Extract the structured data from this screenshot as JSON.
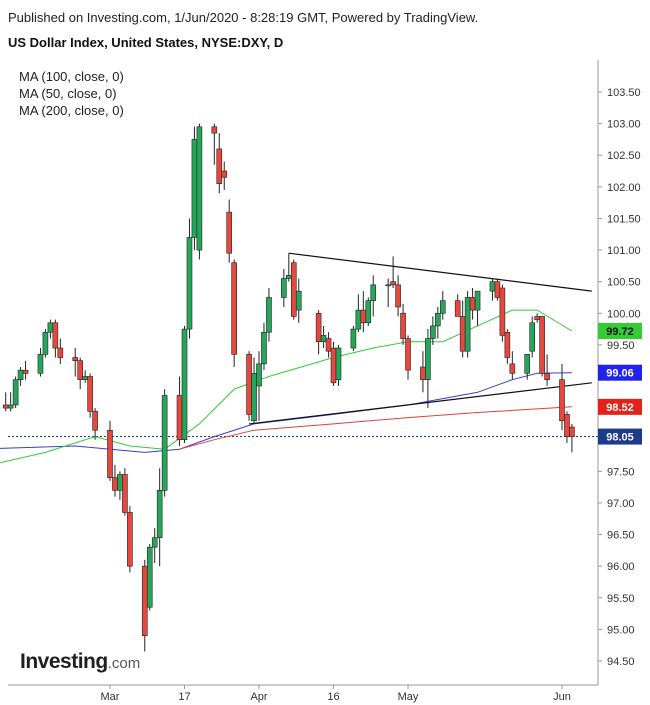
{
  "header": {
    "published": "Published on Investing.com, 1/Jun/2020 - 8:28:19 GMT, Powered by TradingView.",
    "title": "US Dollar Index, United States, NYSE:DXY, D"
  },
  "legend": [
    {
      "label": "MA (100, close, 0)",
      "color": "#3b3bd6"
    },
    {
      "label": "MA (50, close, 0)",
      "color": "#33cc33"
    },
    {
      "label": "MA (200, close, 0)",
      "color": "#e0413a"
    }
  ],
  "logo": {
    "brand": "Investing",
    "suffix": ".com"
  },
  "chart_data": {
    "type": "candlestick",
    "ylim": [
      94.3,
      103.85
    ],
    "y_ticks": [
      "103.50",
      "103.00",
      "102.50",
      "102.00",
      "101.50",
      "101.00",
      "100.50",
      "100.00",
      "99.50",
      "99.00",
      "98.50",
      "98.00",
      "97.50",
      "97.00",
      "96.50",
      "96.00",
      "95.50",
      "95.00",
      "94.50"
    ],
    "x_ticks": [
      {
        "label": "Mar",
        "date": "2020-03-02"
      },
      {
        "label": "17",
        "date": "2020-03-17"
      },
      {
        "label": "Apr",
        "date": "2020-04-01"
      },
      {
        "label": "16",
        "date": "2020-04-16"
      },
      {
        "label": "May",
        "date": "2020-05-01"
      },
      {
        "label": "Jun",
        "date": "2020-06-01"
      }
    ],
    "candles": [
      {
        "d": "2020-02-04",
        "o": 97.85,
        "h": 98.0,
        "l": 97.72,
        "c": 97.98
      },
      {
        "d": "2020-02-05",
        "o": 97.98,
        "h": 98.35,
        "l": 97.95,
        "c": 98.3
      },
      {
        "d": "2020-02-06",
        "o": 98.3,
        "h": 98.45,
        "l": 98.2,
        "c": 98.42
      },
      {
        "d": "2020-02-07",
        "o": 98.42,
        "h": 98.6,
        "l": 98.35,
        "c": 98.55
      },
      {
        "d": "2020-02-10",
        "o": 98.55,
        "h": 98.75,
        "l": 98.45,
        "c": 98.5
      },
      {
        "d": "2020-02-11",
        "o": 98.5,
        "h": 98.75,
        "l": 98.45,
        "c": 98.55
      },
      {
        "d": "2020-02-12",
        "o": 98.55,
        "h": 99.0,
        "l": 98.5,
        "c": 98.95
      },
      {
        "d": "2020-02-13",
        "o": 98.95,
        "h": 99.15,
        "l": 98.85,
        "c": 99.1
      },
      {
        "d": "2020-02-14",
        "o": 99.1,
        "h": 99.25,
        "l": 98.95,
        "c": 99.05
      },
      {
        "d": "2020-02-17",
        "o": 99.05,
        "h": 99.45,
        "l": 99.0,
        "c": 99.35
      },
      {
        "d": "2020-02-18",
        "o": 99.35,
        "h": 99.75,
        "l": 99.3,
        "c": 99.7
      },
      {
        "d": "2020-02-19",
        "o": 99.7,
        "h": 99.9,
        "l": 99.6,
        "c": 99.85
      },
      {
        "d": "2020-02-20",
        "o": 99.85,
        "h": 99.9,
        "l": 99.3,
        "c": 99.45
      },
      {
        "d": "2020-02-21",
        "o": 99.45,
        "h": 99.6,
        "l": 99.2,
        "c": 99.3
      },
      {
        "d": "2020-02-24",
        "o": 99.3,
        "h": 99.45,
        "l": 99.0,
        "c": 99.25
      },
      {
        "d": "2020-02-25",
        "o": 99.25,
        "h": 99.3,
        "l": 98.8,
        "c": 98.95
      },
      {
        "d": "2020-02-26",
        "o": 98.95,
        "h": 99.1,
        "l": 98.9,
        "c": 99.0
      },
      {
        "d": "2020-02-27",
        "o": 99.0,
        "h": 99.05,
        "l": 98.35,
        "c": 98.45
      },
      {
        "d": "2020-02-28",
        "o": 98.45,
        "h": 98.5,
        "l": 98.0,
        "c": 98.15
      },
      {
        "d": "2020-03-02",
        "o": 98.15,
        "h": 98.3,
        "l": 97.35,
        "c": 97.4
      },
      {
        "d": "2020-03-03",
        "o": 97.4,
        "h": 97.6,
        "l": 97.1,
        "c": 97.2
      },
      {
        "d": "2020-03-04",
        "o": 97.2,
        "h": 97.5,
        "l": 97.05,
        "c": 97.45
      },
      {
        "d": "2020-03-05",
        "o": 97.45,
        "h": 97.55,
        "l": 96.8,
        "c": 96.85
      },
      {
        "d": "2020-03-06",
        "o": 96.85,
        "h": 96.95,
        "l": 95.9,
        "c": 96.0
      },
      {
        "d": "2020-03-09",
        "o": 96.0,
        "h": 96.1,
        "l": 94.65,
        "c": 94.9
      },
      {
        "d": "2020-03-10",
        "o": 95.35,
        "h": 96.35,
        "l": 95.3,
        "c": 96.3
      },
      {
        "d": "2020-03-11",
        "o": 96.3,
        "h": 96.6,
        "l": 96.05,
        "c": 96.45
      },
      {
        "d": "2020-03-12",
        "o": 96.45,
        "h": 97.55,
        "l": 96.0,
        "c": 97.2
      },
      {
        "d": "2020-03-13",
        "o": 97.2,
        "h": 98.8,
        "l": 97.1,
        "c": 98.7
      },
      {
        "d": "2020-03-16",
        "o": 98.7,
        "h": 99.0,
        "l": 97.9,
        "c": 98.0
      },
      {
        "d": "2020-03-17",
        "o": 98.0,
        "h": 99.8,
        "l": 97.95,
        "c": 99.75
      },
      {
        "d": "2020-03-18",
        "o": 99.75,
        "h": 101.5,
        "l": 99.6,
        "c": 101.2
      },
      {
        "d": "2020-03-19",
        "o": 101.2,
        "h": 102.95,
        "l": 101.0,
        "c": 102.75
      },
      {
        "d": "2020-03-20",
        "o": 101.0,
        "h": 103.0,
        "l": 100.85,
        "c": 102.95
      },
      {
        "d": "2020-03-23",
        "o": 102.95,
        "h": 103.0,
        "l": 102.35,
        "c": 102.85
      },
      {
        "d": "2020-03-24",
        "o": 102.6,
        "h": 102.85,
        "l": 101.9,
        "c": 102.05
      },
      {
        "d": "2020-03-25",
        "o": 102.25,
        "h": 102.4,
        "l": 101.95,
        "c": 102.15
      },
      {
        "d": "2020-03-26",
        "o": 101.6,
        "h": 101.8,
        "l": 100.8,
        "c": 100.95
      },
      {
        "d": "2020-03-27",
        "o": 100.8,
        "h": 100.85,
        "l": 99.15,
        "c": 99.35
      },
      {
        "d": "2020-03-30",
        "o": 99.35,
        "h": 99.4,
        "l": 98.3,
        "c": 98.4
      },
      {
        "d": "2020-03-31",
        "o": 98.3,
        "h": 99.3,
        "l": 98.25,
        "c": 99.05
      },
      {
        "d": "2020-04-01",
        "o": 98.85,
        "h": 99.4,
        "l": 98.3,
        "c": 99.2
      },
      {
        "d": "2020-04-02",
        "o": 99.2,
        "h": 99.85,
        "l": 99.1,
        "c": 99.7
      },
      {
        "d": "2020-04-03",
        "o": 99.7,
        "h": 100.4,
        "l": 99.55,
        "c": 100.25
      },
      {
        "d": "2020-04-06",
        "o": 100.25,
        "h": 100.7,
        "l": 100.1,
        "c": 100.55
      },
      {
        "d": "2020-04-07",
        "o": 100.55,
        "h": 100.95,
        "l": 100.5,
        "c": 100.6
      },
      {
        "d": "2020-04-08",
        "o": 100.8,
        "h": 100.85,
        "l": 99.9,
        "c": 99.95
      },
      {
        "d": "2020-04-09",
        "o": 100.05,
        "h": 100.55,
        "l": 99.85,
        "c": 100.35
      },
      {
        "d": "2020-04-13",
        "o": 100.0,
        "h": 100.05,
        "l": 99.35,
        "c": 99.55
      },
      {
        "d": "2020-04-14",
        "o": 99.55,
        "h": 99.8,
        "l": 99.45,
        "c": 99.65
      },
      {
        "d": "2020-04-15",
        "o": 99.6,
        "h": 99.7,
        "l": 99.3,
        "c": 99.4
      },
      {
        "d": "2020-04-16",
        "o": 99.45,
        "h": 99.55,
        "l": 98.85,
        "c": 98.9
      },
      {
        "d": "2020-04-17",
        "o": 98.95,
        "h": 99.5,
        "l": 98.85,
        "c": 99.45
      },
      {
        "d": "2020-04-20",
        "o": 99.45,
        "h": 99.8,
        "l": 99.4,
        "c": 99.75
      },
      {
        "d": "2020-04-21",
        "o": 99.75,
        "h": 100.3,
        "l": 99.7,
        "c": 100.05
      },
      {
        "d": "2020-04-22",
        "o": 100.05,
        "h": 100.35,
        "l": 99.7,
        "c": 99.85
      },
      {
        "d": "2020-04-23",
        "o": 99.85,
        "h": 100.25,
        "l": 99.8,
        "c": 100.2
      },
      {
        "d": "2020-04-24",
        "o": 100.2,
        "h": 100.6,
        "l": 99.95,
        "c": 100.45
      },
      {
        "d": "2020-04-27",
        "o": 100.45,
        "h": 100.55,
        "l": 100.1,
        "c": 100.45
      },
      {
        "d": "2020-04-28",
        "o": 100.5,
        "h": 100.9,
        "l": 100.4,
        "c": 100.45
      },
      {
        "d": "2020-04-29",
        "o": 100.45,
        "h": 100.6,
        "l": 99.95,
        "c": 100.1
      },
      {
        "d": "2020-04-30",
        "o": 100.0,
        "h": 100.15,
        "l": 99.5,
        "c": 99.6
      },
      {
        "d": "2020-05-01",
        "o": 99.6,
        "h": 99.65,
        "l": 98.95,
        "c": 99.1
      },
      {
        "d": "2020-05-04",
        "o": 99.15,
        "h": 99.4,
        "l": 98.75,
        "c": 98.95
      },
      {
        "d": "2020-05-05",
        "o": 98.95,
        "h": 99.75,
        "l": 98.5,
        "c": 99.6
      },
      {
        "d": "2020-05-06",
        "o": 99.6,
        "h": 99.95,
        "l": 99.5,
        "c": 99.8
      },
      {
        "d": "2020-05-07",
        "o": 99.8,
        "h": 100.1,
        "l": 99.6,
        "c": 100.0
      },
      {
        "d": "2020-05-08",
        "o": 100.0,
        "h": 100.35,
        "l": 99.9,
        "c": 100.2
      },
      {
        "d": "2020-05-11",
        "o": 100.2,
        "h": 100.3,
        "l": 99.95,
        "c": 99.95
      },
      {
        "d": "2020-05-12",
        "o": 99.95,
        "h": 100.2,
        "l": 99.3,
        "c": 99.4
      },
      {
        "d": "2020-05-13",
        "o": 99.4,
        "h": 100.35,
        "l": 99.3,
        "c": 100.25
      },
      {
        "d": "2020-05-14",
        "o": 100.25,
        "h": 100.4,
        "l": 99.9,
        "c": 100.05
      },
      {
        "d": "2020-05-15",
        "o": 100.05,
        "h": 100.3,
        "l": 99.8,
        "c": 100.35
      },
      {
        "d": "2020-05-18",
        "o": 100.35,
        "h": 100.55,
        "l": 100.2,
        "c": 100.5
      },
      {
        "d": "2020-05-19",
        "o": 100.5,
        "h": 100.55,
        "l": 100.2,
        "c": 100.25
      },
      {
        "d": "2020-05-20",
        "o": 100.4,
        "h": 100.45,
        "l": 99.55,
        "c": 99.65
      },
      {
        "d": "2020-05-21",
        "o": 99.7,
        "h": 99.75,
        "l": 99.2,
        "c": 99.3
      },
      {
        "d": "2020-05-22",
        "o": 99.2,
        "h": 99.4,
        "l": 98.95,
        "c": 99.05
      },
      {
        "d": "2020-05-25",
        "o": 99.05,
        "h": 99.35,
        "l": 98.95,
        "c": 99.35
      },
      {
        "d": "2020-05-26",
        "o": 99.4,
        "h": 99.95,
        "l": 99.3,
        "c": 99.85
      },
      {
        "d": "2020-05-27",
        "o": 99.95,
        "h": 100.0,
        "l": 99.85,
        "c": 99.9
      },
      {
        "d": "2020-05-28",
        "o": 99.95,
        "h": 99.95,
        "l": 99.0,
        "c": 99.05
      },
      {
        "d": "2020-05-29",
        "o": 99.05,
        "h": 99.35,
        "l": 98.85,
        "c": 98.95
      },
      {
        "d": "2020-06-01",
        "o": 98.95,
        "h": 99.2,
        "l": 98.15,
        "c": 98.3
      },
      {
        "d": "2020-06-02",
        "o": 98.4,
        "h": 98.45,
        "l": 97.95,
        "c": 98.05
      },
      {
        "d": "2020-06-03",
        "o": 98.2,
        "h": 98.25,
        "l": 97.8,
        "c": 98.05
      }
    ],
    "ma_lines": [
      {
        "name": "MA (100, close, 0)",
        "color": "#3b3bd6",
        "last_value": "99.06",
        "points": [
          [
            "2020-02-04",
            97.85
          ],
          [
            "2020-02-24",
            97.9
          ],
          [
            "2020-03-09",
            97.8
          ],
          [
            "2020-03-16",
            97.85
          ],
          [
            "2020-03-23",
            98.05
          ],
          [
            "2020-03-31",
            98.25
          ],
          [
            "2020-04-16",
            98.4
          ],
          [
            "2020-05-01",
            98.55
          ],
          [
            "2020-05-15",
            98.75
          ],
          [
            "2020-05-22",
            98.95
          ],
          [
            "2020-05-27",
            99.05
          ],
          [
            "2020-06-03",
            99.06
          ]
        ]
      },
      {
        "name": "MA (50, close, 0)",
        "color": "#33cc33",
        "last_value": "99.72",
        "points": [
          [
            "2020-02-04",
            97.55
          ],
          [
            "2020-02-18",
            97.8
          ],
          [
            "2020-02-28",
            98.05
          ],
          [
            "2020-03-06",
            97.9
          ],
          [
            "2020-03-13",
            97.85
          ],
          [
            "2020-03-20",
            98.25
          ],
          [
            "2020-03-27",
            98.8
          ],
          [
            "2020-04-03",
            99.0
          ],
          [
            "2020-04-16",
            99.3
          ],
          [
            "2020-04-24",
            99.45
          ],
          [
            "2020-05-01",
            99.55
          ],
          [
            "2020-05-08",
            99.55
          ],
          [
            "2020-05-15",
            99.8
          ],
          [
            "2020-05-22",
            100.05
          ],
          [
            "2020-05-27",
            100.05
          ],
          [
            "2020-06-03",
            99.72
          ]
        ]
      },
      {
        "name": "MA (200, close, 0)",
        "color": "#e0413a",
        "last_value": "98.52",
        "points": [
          [
            "2020-03-16",
            97.85
          ],
          [
            "2020-03-23",
            98.0
          ],
          [
            "2020-03-31",
            98.15
          ],
          [
            "2020-04-16",
            98.25
          ],
          [
            "2020-05-01",
            98.35
          ],
          [
            "2020-05-15",
            98.43
          ],
          [
            "2020-06-03",
            98.52
          ]
        ]
      }
    ],
    "trend_lines": [
      {
        "name": "upper",
        "from": [
          "2020-04-07",
          100.95
        ],
        "to": [
          "2020-06-07",
          100.35
        ]
      },
      {
        "name": "lower",
        "from": [
          "2020-03-30",
          98.25
        ],
        "to": [
          "2020-06-07",
          98.9
        ]
      }
    ],
    "price_labels": [
      {
        "value": "99.72",
        "y": 99.72,
        "bg": "#33cc33",
        "fg": "#111111"
      },
      {
        "value": "99.06",
        "y": 99.06,
        "bg": "#2222ee",
        "fg": "#ffffff"
      },
      {
        "value": "98.52",
        "y": 98.52,
        "bg": "#e8201a",
        "fg": "#ffffff"
      },
      {
        "value": "98.05",
        "y": 98.05,
        "bg": "#1e3a8a",
        "fg": "#ffffff"
      }
    ],
    "last_price": 98.05
  }
}
